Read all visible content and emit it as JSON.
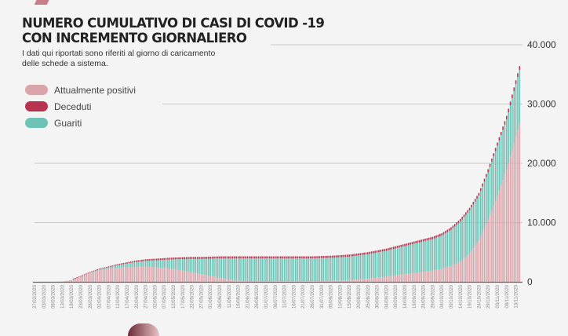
{
  "header": {
    "title_line1": "NUMERO CUMULATIVO DI CASI DI COVID -19",
    "title_line2": "CON INCREMENTO GIORNALIERO",
    "subtitle_line1": "I dati qui riportati sono riferiti al giorno di caricamento",
    "subtitle_line2": "delle schede a sistema."
  },
  "colors": {
    "positivi": "#d9a5aa",
    "deceduti": "#b8334f",
    "guariti": "#6fc3b6",
    "grid": "#c8c8c8",
    "background": "#f4f4f4"
  },
  "chart_data": {
    "type": "bar",
    "stacked": true,
    "title": "NUMERO CUMULATIVO DI CASI DI COVID -19 CON INCREMENTO GIORNALIERO",
    "xlabel": "",
    "ylabel": "",
    "ylim": [
      0,
      40000
    ],
    "yticks": [
      "0",
      "10.000",
      "20.000",
      "30.000",
      "40.000"
    ],
    "ytick_values": [
      0,
      10000,
      20000,
      30000,
      40000
    ],
    "grid": true,
    "legend_placement": "top-left",
    "categories": [
      "27/02/2020",
      "03/03/2020",
      "08/03/2020",
      "13/03/2020",
      "18/03/2020",
      "23/03/2020",
      "28/03/2020",
      "02/04/2020",
      "07/04/2020",
      "12/04/2020",
      "17/04/2020",
      "22/04/2020",
      "27/04/2020",
      "02/05/2020",
      "07/05/2020",
      "12/05/2020",
      "17/05/2020",
      "22/05/2020",
      "27/05/2020",
      "01/06/2020",
      "06/06/2020",
      "11/06/2020",
      "16/06/2020",
      "21/06/2020",
      "26/06/2020",
      "01/07/2020",
      "06/07/2020",
      "11/07/2020",
      "16/07/2020",
      "21/07/2020",
      "26/07/2020",
      "31/07/2020",
      "05/08/2020",
      "10/08/2020",
      "15/08/2020",
      "20/08/2020",
      "25/08/2020",
      "30/08/2020",
      "04/09/2020",
      "09/09/2020",
      "14/09/2020",
      "19/09/2020",
      "24/09/2020",
      "29/09/2020",
      "04/10/2020",
      "09/10/2020",
      "14/10/2020",
      "19/10/2020",
      "24/10/2020",
      "29/10/2020",
      "03/11/2020",
      "08/11/2020",
      "13/11/2020"
    ],
    "series": [
      {
        "name": "Attualmente positivi",
        "values": [
          0,
          0,
          0,
          50,
          300,
          880,
          1480,
          1950,
          2220,
          2380,
          2450,
          2500,
          2550,
          2480,
          2350,
          2150,
          1900,
          1600,
          1300,
          1000,
          700,
          400,
          250,
          150,
          100,
          100,
          100,
          100,
          100,
          100,
          100,
          150,
          200,
          250,
          300,
          400,
          550,
          700,
          900,
          1100,
          1300,
          1500,
          1700,
          1900,
          2200,
          2700,
          3400,
          4800,
          7000,
          10500,
          14500,
          19000,
          24500
        ]
      },
      {
        "name": "Guariti",
        "values": [
          0,
          0,
          0,
          0,
          0,
          0,
          60,
          150,
          240,
          440,
          640,
          860,
          990,
          1140,
          1350,
          1640,
          1930,
          2270,
          2560,
          2910,
          3250,
          3550,
          3700,
          3800,
          3850,
          3850,
          3850,
          3850,
          3850,
          3850,
          3850,
          3850,
          3850,
          3900,
          3950,
          4050,
          4100,
          4240,
          4340,
          4540,
          4730,
          4930,
          5120,
          5310,
          5600,
          6090,
          6770,
          7250,
          7520,
          7990,
          8460,
          8420,
          8880
        ]
      },
      {
        "name": "Deceduti",
        "values": [
          0,
          0,
          0,
          0,
          0,
          20,
          60,
          100,
          140,
          180,
          210,
          240,
          260,
          280,
          300,
          310,
          320,
          330,
          340,
          340,
          350,
          350,
          350,
          350,
          350,
          350,
          350,
          350,
          350,
          350,
          350,
          350,
          350,
          350,
          350,
          350,
          350,
          360,
          360,
          360,
          370,
          370,
          380,
          390,
          400,
          410,
          430,
          450,
          480,
          510,
          540,
          580,
          620
        ]
      }
    ]
  }
}
